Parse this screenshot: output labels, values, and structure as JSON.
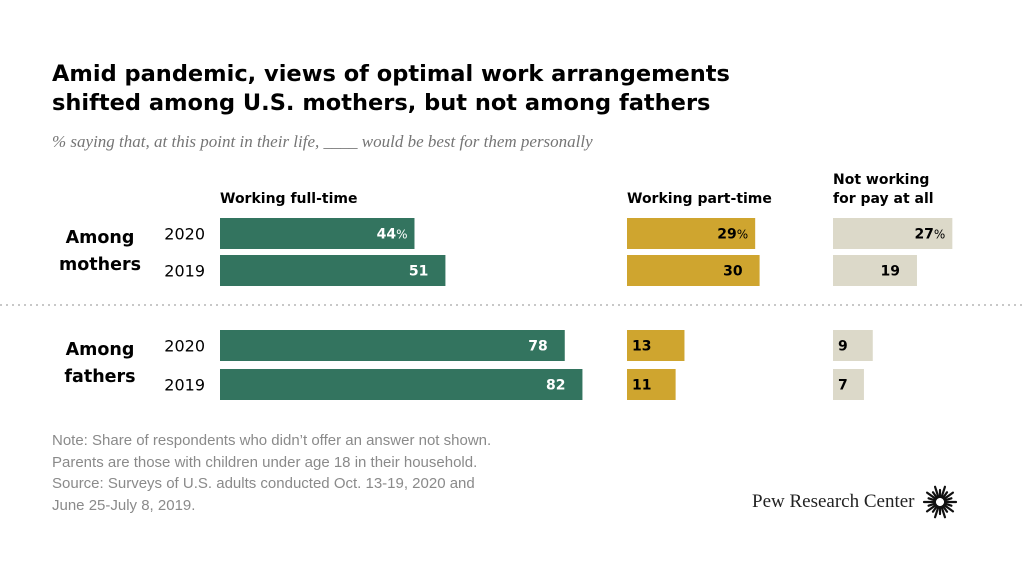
{
  "title_lines": [
    "Amid pandemic, views of optimal work arrangements",
    "shifted among U.S. mothers, but not among fathers"
  ],
  "subtitle": "% saying that, at this point in their life, ____ would be best for them personally",
  "chart_data": {
    "type": "bar",
    "orientation": "horizontal",
    "groups": [
      {
        "label": "Among mothers",
        "label_lines": [
          "Among",
          "mothers"
        ],
        "years": [
          "2020",
          "2019"
        ]
      },
      {
        "label": "Among fathers",
        "label_lines": [
          "Among",
          "fathers"
        ],
        "years": [
          "2020",
          "2019"
        ]
      }
    ],
    "series": [
      {
        "name": "Working full-time",
        "header_lines": [
          "Working full-time"
        ],
        "color": "#33745f",
        "label_color": "#ffffff",
        "values": [
          44,
          51,
          78,
          82
        ],
        "labels": [
          "44%",
          "51",
          "78",
          "82"
        ]
      },
      {
        "name": "Working part-time",
        "header_lines": [
          "Working part-time"
        ],
        "color": "#cfa52f",
        "label_color": "#000000",
        "values": [
          29,
          30,
          13,
          11
        ],
        "labels": [
          "29%",
          "30",
          "13",
          "11"
        ]
      },
      {
        "name": "Not working for pay at all",
        "header_lines": [
          "Not working",
          "for pay at all"
        ],
        "color": "#dcd9c9",
        "label_color": "#000000",
        "values": [
          27,
          19,
          9,
          7
        ],
        "labels": [
          "27%",
          "19",
          "9",
          "7"
        ]
      }
    ]
  },
  "notes": [
    "Note: Share of respondents who didn’t offer an answer not shown.",
    "Parents are those with children under age 18 in their household.",
    "Source:  Surveys of U.S. adults conducted Oct. 13-19, 2020 and",
    "June 25-July 8, 2019."
  ],
  "logo": {
    "text": "Pew Research Center",
    "icon": "pew-sunburst-icon"
  }
}
